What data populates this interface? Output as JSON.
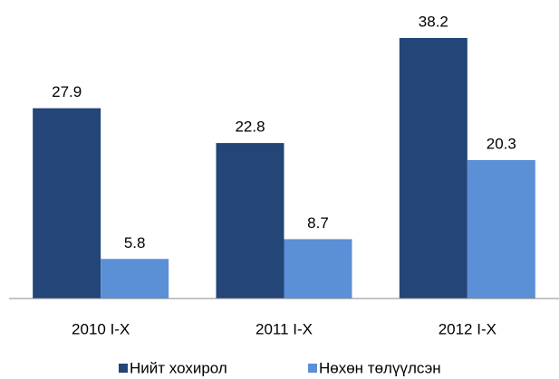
{
  "chart_data": {
    "type": "bar",
    "categories": [
      "2010 I-X",
      "2011 I-X",
      "2012 I-X"
    ],
    "series": [
      {
        "name": "Нийт хохирол",
        "color": "#234577",
        "values": [
          27.9,
          22.8,
          38.2
        ]
      },
      {
        "name": "Нөхөн төлүүлсэн",
        "color": "#5b8fd6",
        "values": [
          5.8,
          8.7,
          20.3
        ]
      }
    ],
    "legend": "bottom"
  }
}
